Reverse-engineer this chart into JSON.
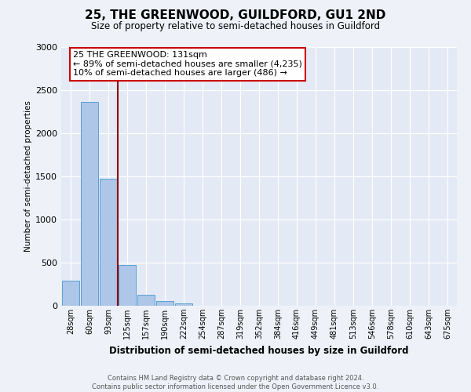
{
  "title": "25, THE GREENWOOD, GUILDFORD, GU1 2ND",
  "subtitle": "Size of property relative to semi-detached houses in Guildford",
  "xlabel": "Distribution of semi-detached houses by size in Guildford",
  "ylabel": "Number of semi-detached properties",
  "bar_labels": [
    "28sqm",
    "60sqm",
    "93sqm",
    "125sqm",
    "157sqm",
    "190sqm",
    "222sqm",
    "254sqm",
    "287sqm",
    "319sqm",
    "352sqm",
    "384sqm",
    "416sqm",
    "449sqm",
    "481sqm",
    "513sqm",
    "546sqm",
    "578sqm",
    "610sqm",
    "643sqm",
    "675sqm"
  ],
  "bar_values": [
    290,
    2360,
    1470,
    470,
    130,
    55,
    30,
    0,
    0,
    0,
    0,
    0,
    0,
    0,
    0,
    0,
    0,
    0,
    0,
    0,
    0
  ],
  "bar_color": "#aec6e8",
  "bar_edge_color": "#5a9fd4",
  "ylim": [
    0,
    3000
  ],
  "yticks": [
    0,
    500,
    1000,
    1500,
    2000,
    2500,
    3000
  ],
  "property_line_color": "#8b0000",
  "annotation_title": "25 THE GREENWOOD: 131sqm",
  "annotation_line1": "← 89% of semi-detached houses are smaller (4,235)",
  "annotation_line2": "10% of semi-detached houses are larger (486) →",
  "annotation_box_color": "#ffffff",
  "annotation_box_edge_color": "#cc0000",
  "footer_line1": "Contains HM Land Registry data © Crown copyright and database right 2024.",
  "footer_line2": "Contains public sector information licensed under the Open Government Licence v3.0.",
  "bg_color": "#eef2f8",
  "plot_bg_color": "#e4eaf5"
}
